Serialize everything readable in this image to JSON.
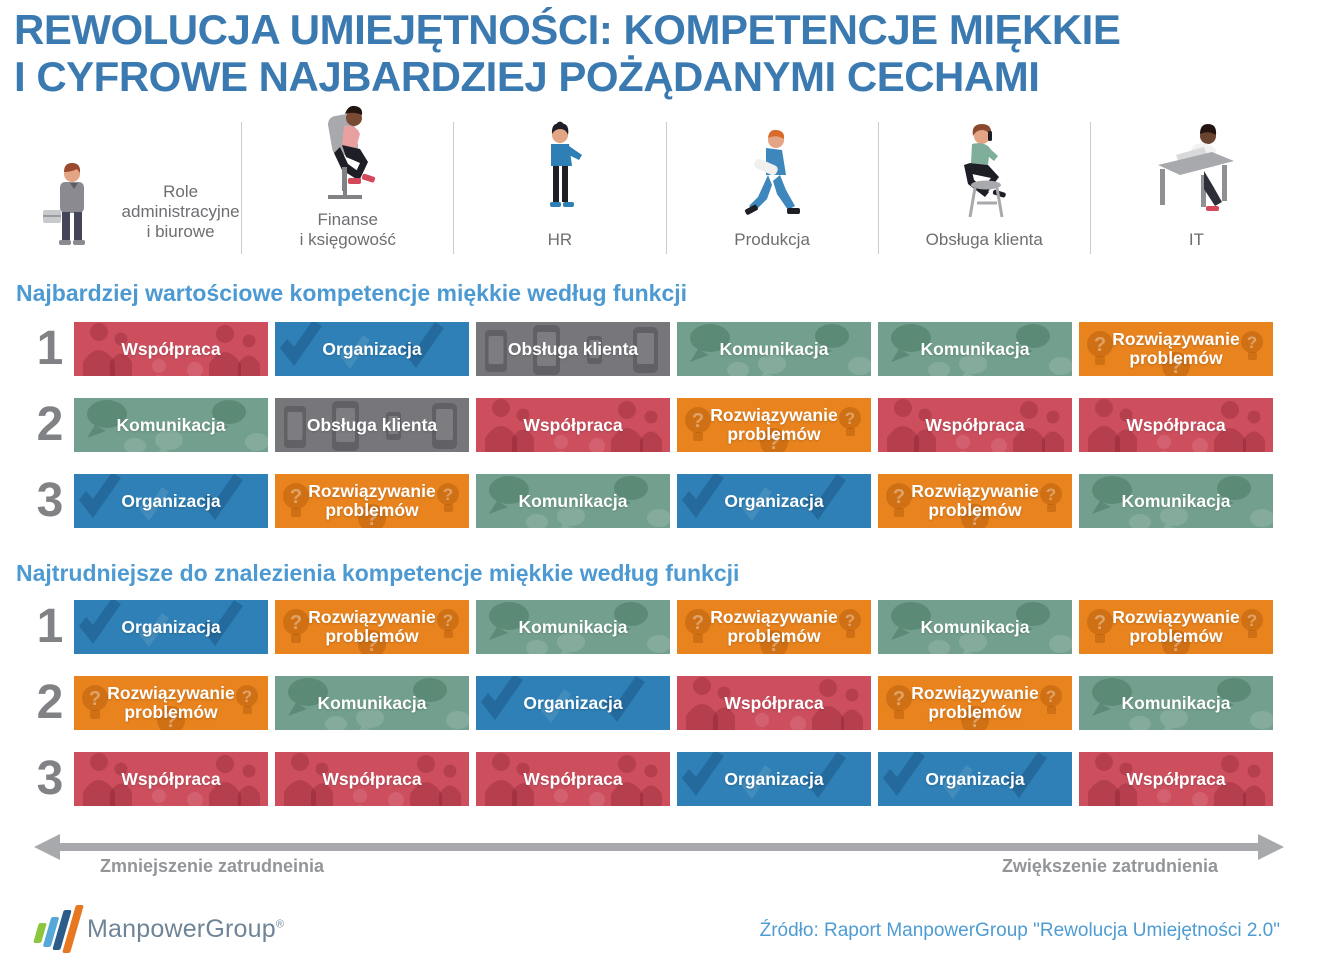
{
  "title": {
    "line1": "REWOLUCJA UMIEJĘTNOŚCI: KOMPETENCJE MIĘKKIE",
    "line2": "I CYFROWE NAJBARDZIEJ POŻĄDANYMI CECHAMI"
  },
  "categories": [
    {
      "label": "Role administracyjne i biurowe",
      "lines": [
        "Role",
        "administracyjne",
        "i biurowe"
      ],
      "icon": "standing-businessman-icon"
    },
    {
      "label": "Finanse i księgowość",
      "lines": [
        "Finanse",
        "i księgowość"
      ],
      "icon": "office-chair-person-icon"
    },
    {
      "label": "HR",
      "lines": [
        "HR"
      ],
      "icon": "standing-woman-icon"
    },
    {
      "label": "Produkcja",
      "lines": [
        "Produkcja"
      ],
      "icon": "walking-worker-icon"
    },
    {
      "label": "Obsługa klienta",
      "lines": [
        "Obsługa klienta"
      ],
      "icon": "seated-phone-person-icon"
    },
    {
      "label": "IT",
      "lines": [
        "IT"
      ],
      "icon": "desk-laptop-person-icon"
    }
  ],
  "competencies": {
    "collaboration": {
      "label": "Współpraca",
      "color": "#CD4F5E"
    },
    "organization": {
      "label": "Organizacja",
      "color": "#2E80B6"
    },
    "customer_service": {
      "label": "Obsługa klienta",
      "color": "#77767B"
    },
    "communication": {
      "label": "Komunikacja",
      "color": "#73A08E"
    },
    "problem_solving": {
      "label": "Rozwiązywanie problemów",
      "color": "#E8831E"
    }
  },
  "sections": [
    {
      "heading": "Najbardziej wartościowe kompetencje miękkie według funkcji",
      "rows": [
        {
          "rank": "1",
          "tiles": [
            "collaboration",
            "organization",
            "customer_service",
            "communication",
            "communication",
            "problem_solving"
          ]
        },
        {
          "rank": "2",
          "tiles": [
            "communication",
            "customer_service",
            "collaboration",
            "problem_solving",
            "collaboration",
            "collaboration"
          ]
        },
        {
          "rank": "3",
          "tiles": [
            "organization",
            "problem_solving",
            "communication",
            "organization",
            "problem_solving",
            "communication"
          ]
        }
      ]
    },
    {
      "heading": "Najtrudniejsze do znalezienia kompetencje miękkie według funkcji",
      "rows": [
        {
          "rank": "1",
          "tiles": [
            "organization",
            "problem_solving",
            "communication",
            "problem_solving",
            "communication",
            "problem_solving"
          ]
        },
        {
          "rank": "2",
          "tiles": [
            "problem_solving",
            "communication",
            "organization",
            "collaboration",
            "problem_solving",
            "communication"
          ]
        },
        {
          "rank": "3",
          "tiles": [
            "collaboration",
            "collaboration",
            "collaboration",
            "organization",
            "organization",
            "collaboration"
          ]
        }
      ]
    }
  ],
  "axis": {
    "left": "Zmniejszenie zatrudneinia",
    "right": "Zwiększenie zatrudnienia"
  },
  "footer": {
    "brand": "ManpowerGroup",
    "reg": "®",
    "source": "Źródło: Raport ManpowerGroup \"Rewolucja Umiejętności 2.0\""
  },
  "colors": {
    "title_blue": "#3A7AB1",
    "heading_blue": "#4D9AD3",
    "category_gray": "#6D6E71",
    "rank_gray": "#808285",
    "axis_gray": "#A7A9AC",
    "source_blue": "#4E9CD3"
  },
  "chart_data": {
    "type": "table",
    "title": "REWOLUCJA UMIEJĘTNOŚCI: KOMPETENCJE MIĘKKIE I CYFROWE NAJBARDZIEJ POŻĄDANYMI CECHAMI",
    "columns": [
      "Role administracyjne i biurowe",
      "Finanse i księgowość",
      "HR",
      "Produkcja",
      "Obsługa klienta",
      "IT"
    ],
    "tables": [
      {
        "name": "Najbardziej wartościowe kompetencje miękkie według funkcji",
        "rows": [
          {
            "rank": 1,
            "values": [
              "Współpraca",
              "Organizacja",
              "Obsługa klienta",
              "Komunikacja",
              "Komunikacja",
              "Rozwiązywanie problemów"
            ]
          },
          {
            "rank": 2,
            "values": [
              "Komunikacja",
              "Obsługa klienta",
              "Współpraca",
              "Rozwiązywanie problemów",
              "Współpraca",
              "Współpraca"
            ]
          },
          {
            "rank": 3,
            "values": [
              "Organizacja",
              "Rozwiązywanie problemów",
              "Komunikacja",
              "Organizacja",
              "Rozwiązywanie problemów",
              "Komunikacja"
            ]
          }
        ]
      },
      {
        "name": "Najtrudniejsze do znalezienia kompetencje miękkie według funkcji",
        "rows": [
          {
            "rank": 1,
            "values": [
              "Organizacja",
              "Rozwiązywanie problemów",
              "Komunikacja",
              "Rozwiązywanie problemów",
              "Komunikacja",
              "Rozwiązywanie problemów"
            ]
          },
          {
            "rank": 2,
            "values": [
              "Rozwiązywanie problemów",
              "Komunikacja",
              "Organizacja",
              "Współpraca",
              "Rozwiązywanie problemów",
              "Komunikacja"
            ]
          },
          {
            "rank": 3,
            "values": [
              "Współpraca",
              "Współpraca",
              "Współpraca",
              "Organizacja",
              "Organizacja",
              "Współpraca"
            ]
          }
        ]
      }
    ],
    "axis_annotation": {
      "left": "Zmniejszenie zatrudneinia",
      "right": "Zwiększenie zatrudnienia"
    }
  }
}
